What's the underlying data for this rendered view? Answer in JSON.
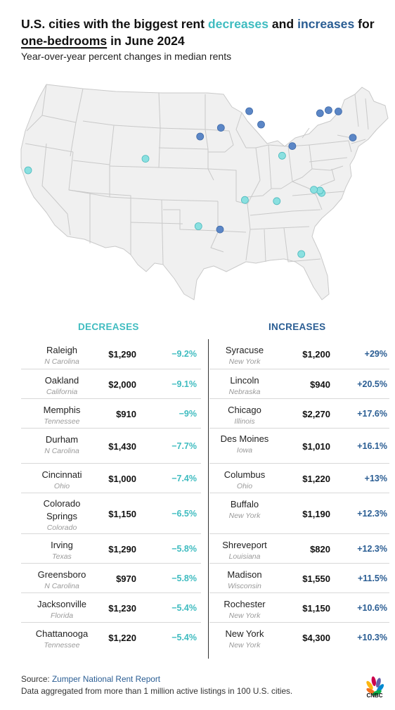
{
  "colors": {
    "decrease": "#3fbcc0",
    "increase": "#2a5d93",
    "dot_decrease": "#8ae0e0",
    "dot_increase": "#5b86c6",
    "map_fill": "#f0f0f0",
    "map_border": "#c9c9c9"
  },
  "header": {
    "title_part1": "U.S. cities with the biggest rent ",
    "title_decreases": "decreases",
    "title_and": " and ",
    "title_increases": "increases",
    "title_for": " for",
    "title_onebed": "one-bedrooms",
    "title_end": " in June 2024",
    "subtitle": "Year-over-year percent changes in median rents"
  },
  "map": {
    "dots": [
      {
        "name": "Oakland",
        "type": "decrease",
        "lon": -122.27,
        "lat": 37.8
      },
      {
        "name": "Colorado Springs",
        "type": "decrease",
        "lon": -104.82,
        "lat": 38.83
      },
      {
        "name": "Irving",
        "type": "decrease",
        "lon": -96.95,
        "lat": 32.81
      },
      {
        "name": "Shreveport",
        "type": "increase",
        "lon": -93.75,
        "lat": 32.52
      },
      {
        "name": "Memphis",
        "type": "decrease",
        "lon": -90.05,
        "lat": 35.15
      },
      {
        "name": "Chattanooga",
        "type": "decrease",
        "lon": -85.31,
        "lat": 35.05
      },
      {
        "name": "Jacksonville",
        "type": "decrease",
        "lon": -81.66,
        "lat": 30.33
      },
      {
        "name": "Cincinnati",
        "type": "decrease",
        "lon": -84.51,
        "lat": 39.1
      },
      {
        "name": "Columbus",
        "type": "increase",
        "lon": -83.0,
        "lat": 39.96
      },
      {
        "name": "Raleigh",
        "type": "decrease",
        "lon": -78.64,
        "lat": 35.78
      },
      {
        "name": "Durham",
        "type": "decrease",
        "lon": -78.9,
        "lat": 35.99
      },
      {
        "name": "Greensboro",
        "type": "decrease",
        "lon": -79.79,
        "lat": 36.07
      },
      {
        "name": "Lincoln",
        "type": "increase",
        "lon": -96.7,
        "lat": 40.81
      },
      {
        "name": "Des Moines",
        "type": "increase",
        "lon": -93.61,
        "lat": 41.59
      },
      {
        "name": "Madison",
        "type": "increase",
        "lon": -89.4,
        "lat": 43.07
      },
      {
        "name": "Chicago",
        "type": "increase",
        "lon": -87.63,
        "lat": 41.88
      },
      {
        "name": "Buffalo",
        "type": "increase",
        "lon": -78.88,
        "lat": 42.89
      },
      {
        "name": "Rochester",
        "type": "increase",
        "lon": -77.61,
        "lat": 43.16
      },
      {
        "name": "Syracuse",
        "type": "increase",
        "lon": -76.15,
        "lat": 43.05
      },
      {
        "name": "New York",
        "type": "increase",
        "lon": -74.0,
        "lat": 40.71
      }
    ]
  },
  "decreases_header": "DECREASES",
  "increases_header": "INCREASES",
  "decreases": [
    {
      "city": "Raleigh",
      "state": "N Carolina",
      "rent": "$1,290",
      "change": "−9.2%"
    },
    {
      "city": "Oakland",
      "state": "California",
      "rent": "$2,000",
      "change": "−9.1%"
    },
    {
      "city": "Memphis",
      "state": "Tennessee",
      "rent": "$910",
      "change": "−9%"
    },
    {
      "city": "Durham",
      "state": "N Carolina",
      "rent": "$1,430",
      "change": "−7.7%"
    },
    {
      "city": "Cincinnati",
      "state": "Ohio",
      "rent": "$1,000",
      "change": "−7.4%"
    },
    {
      "city": "Colorado Springs",
      "state": "Colorado",
      "rent": "$1,150",
      "change": "−6.5%"
    },
    {
      "city": "Irving",
      "state": "Texas",
      "rent": "$1,290",
      "change": "−5.8%"
    },
    {
      "city": "Greensboro",
      "state": "N Carolina",
      "rent": "$970",
      "change": "−5.8%"
    },
    {
      "city": "Jacksonville",
      "state": "Florida",
      "rent": "$1,230",
      "change": "−5.4%"
    },
    {
      "city": "Chattanooga",
      "state": "Tennessee",
      "rent": "$1,220",
      "change": "−5.4%"
    }
  ],
  "increases": [
    {
      "city": "Syracuse",
      "state": "New York",
      "rent": "$1,200",
      "change": "+29%"
    },
    {
      "city": "Lincoln",
      "state": "Nebraska",
      "rent": "$940",
      "change": "+20.5%"
    },
    {
      "city": "Chicago",
      "state": "Illinois",
      "rent": "$2,270",
      "change": "+17.6%"
    },
    {
      "city": "Des Moines",
      "state": "Iowa",
      "rent": "$1,010",
      "change": "+16.1%"
    },
    {
      "city": "Columbus",
      "state": "Ohio",
      "rent": "$1,220",
      "change": "+13%"
    },
    {
      "city": "Buffalo",
      "state": "New York",
      "rent": "$1,190",
      "change": "+12.3%"
    },
    {
      "city": "Shreveport",
      "state": "Louisiana",
      "rent": "$820",
      "change": "+12.3%"
    },
    {
      "city": "Madison",
      "state": "Wisconsin",
      "rent": "$1,550",
      "change": "+11.5%"
    },
    {
      "city": "Rochester",
      "state": "New York",
      "rent": "$1,150",
      "change": "+10.6%"
    },
    {
      "city": "New York",
      "state": "New York",
      "rent": "$4,300",
      "change": "+10.3%"
    }
  ],
  "footer": {
    "source_label": "Source: ",
    "source_link": "Zumper National Rent Report",
    "note": "Data aggregated from more than 1 million active listings in 100 U.S. cities."
  },
  "logo": {
    "icon": "cnbc-peacock-logo",
    "text": "CNBC"
  }
}
